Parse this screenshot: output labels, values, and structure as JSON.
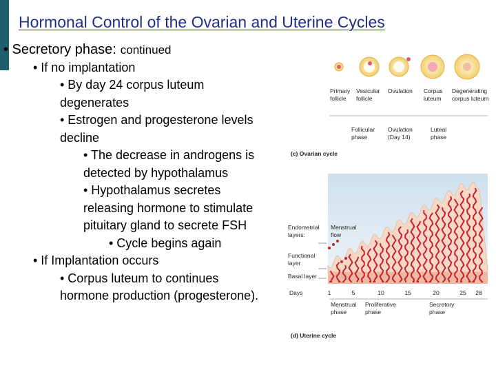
{
  "header": {
    "title": "Hormonal Control of the Ovarian and Uterine Cycles"
  },
  "bullets": [
    {
      "level": 0,
      "lines": [
        "• Secretory phase:"
      ],
      "note": "continued"
    },
    {
      "level": 1,
      "lines": [
        "• If no implantation"
      ]
    },
    {
      "level": 2,
      "lines": [
        "• By day 24 corpus luteum",
        "degenerates"
      ]
    },
    {
      "level": 2,
      "lines": [
        "• Estrogen and progesterone levels",
        "decline"
      ]
    },
    {
      "level": 3,
      "lines": [
        "• The decrease in androgens is",
        "detected by hypothalamus"
      ]
    },
    {
      "level": 3,
      "lines": [
        "• Hypothalamus secretes",
        "releasing hormone to stimulate",
        "pituitary gland to secrete FSH"
      ]
    },
    {
      "level": 4,
      "lines": [
        "• Cycle begins again"
      ]
    },
    {
      "level": 1,
      "lines": [
        "• If Implantation occurs"
      ]
    },
    {
      "level": 2,
      "lines": [
        "• Corpus luteum to continues",
        "hormone production (progesterone)."
      ]
    }
  ],
  "figure": {
    "ovarian_stages": [
      {
        "lines": [
          "Primary",
          "follicle"
        ]
      },
      {
        "lines": [
          "Vesicular",
          "follicle"
        ]
      },
      {
        "lines": [
          "Ovulation"
        ]
      },
      {
        "lines": [
          "Corpus",
          "luteum"
        ]
      },
      {
        "lines": [
          "Degenerating",
          "corpus luteum"
        ]
      }
    ],
    "ovarian_phases": [
      {
        "lines": [
          "Follicular",
          "phase"
        ]
      },
      {
        "lines": [
          "Ovulation",
          "(Day 14)"
        ]
      },
      {
        "lines": [
          "Luteal",
          "phase"
        ]
      }
    ],
    "ovarian_caption": "(c) Ovarian cycle",
    "layer_labels": [
      {
        "lines": [
          "Endometrial",
          "layers:"
        ]
      },
      {
        "lines": [
          "Menstrual",
          "flow"
        ]
      },
      {
        "lines": [
          "Functional",
          "layer"
        ]
      },
      {
        "lines": [
          "Basal layer"
        ]
      }
    ],
    "days_label": "Days",
    "days": [
      "1",
      "5",
      "10",
      "15",
      "20",
      "25",
      "28"
    ],
    "uterine_phases": [
      {
        "lines": [
          "Menstrual",
          "phase"
        ]
      },
      {
        "lines": [
          "Proliferative",
          "phase"
        ]
      },
      {
        "lines": [
          "Secretory",
          "phase"
        ]
      }
    ],
    "uterine_caption": "(d) Uterine cycle"
  }
}
